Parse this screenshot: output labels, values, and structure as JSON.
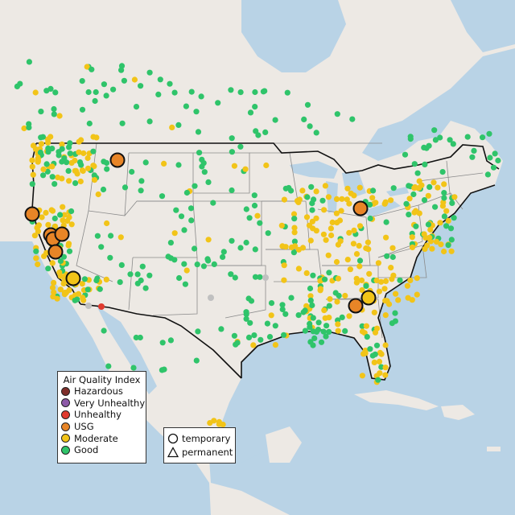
{
  "legend": {
    "title": "Air Quality Index",
    "categories": [
      {
        "label": "Hazardous",
        "color": "#7e2e2a"
      },
      {
        "label": "Very Unhealthy",
        "color": "#8d5aa8"
      },
      {
        "label": "Unhealthy",
        "color": "#e03a2e"
      },
      {
        "label": "USG",
        "color": "#e88527"
      },
      {
        "label": "Moderate",
        "color": "#f2c418"
      },
      {
        "label": "Good",
        "color": "#2fc46a"
      }
    ]
  },
  "monitor_legend": {
    "temporary_label": "temporary",
    "permanent_label": "permanent"
  },
  "colors": {
    "water": "#b9d3e6",
    "land": "#ede9e4",
    "no_data": "#c0c0c0"
  }
}
